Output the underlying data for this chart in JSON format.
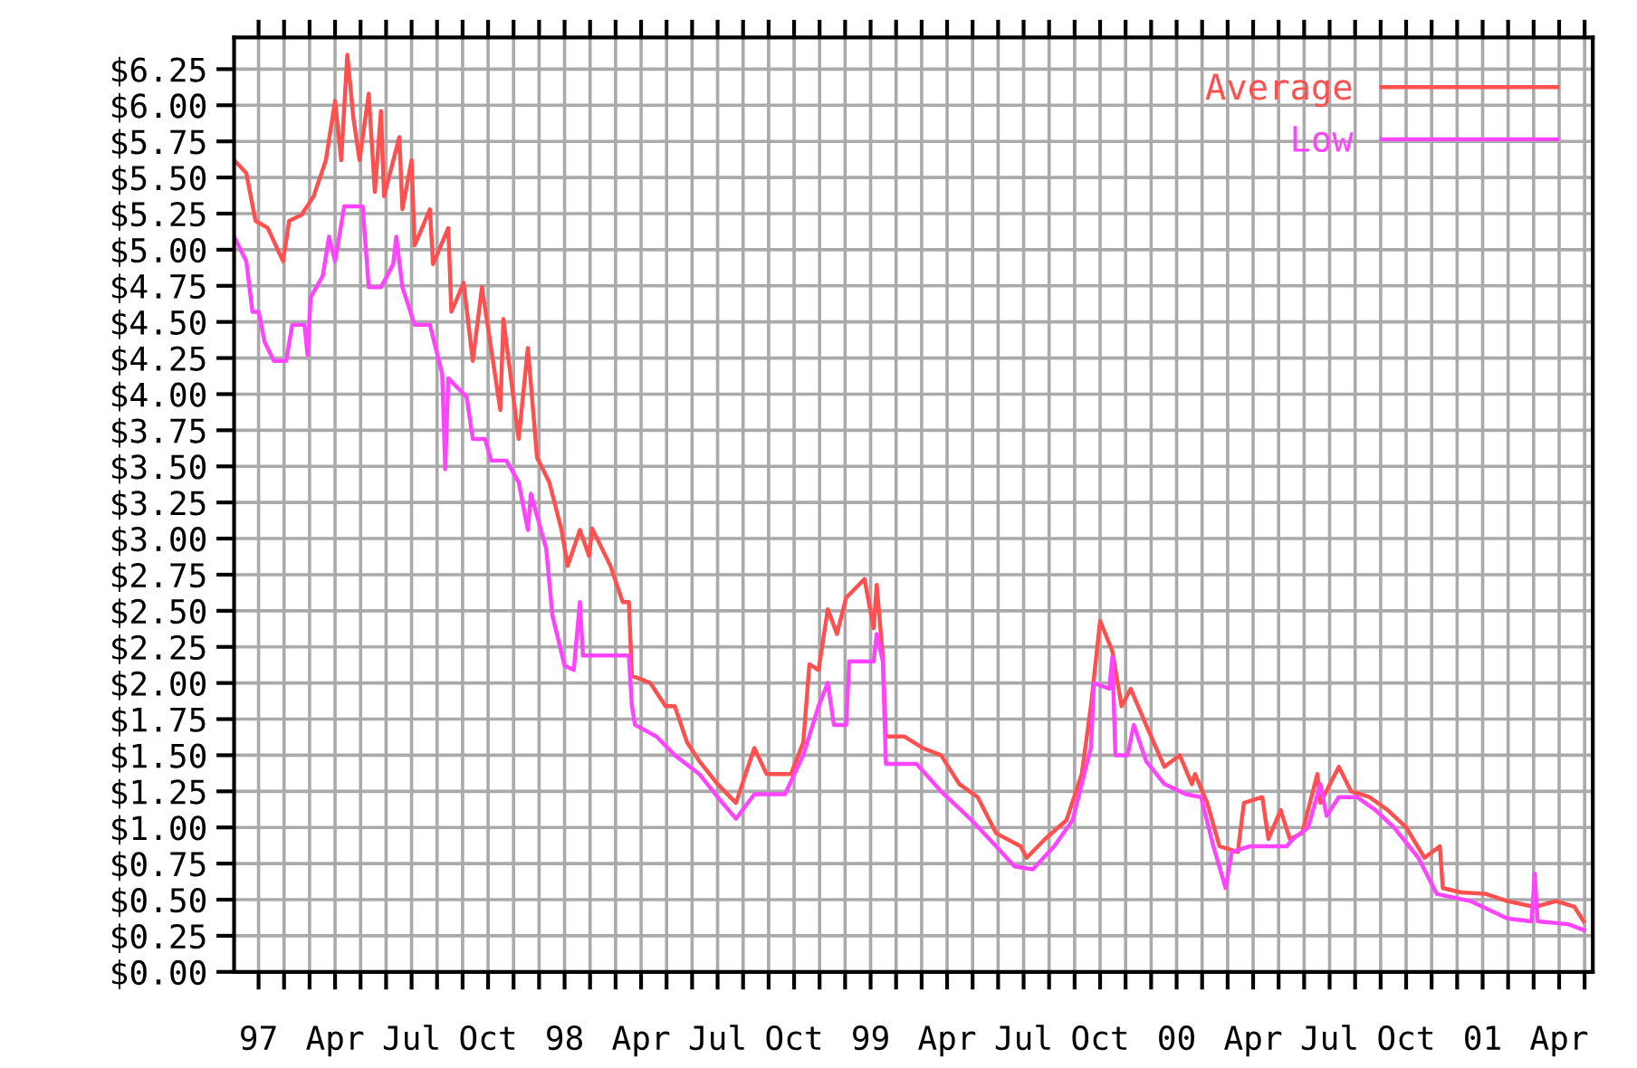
{
  "chart_data": {
    "type": "line",
    "x": [
      1996.92,
      1996.96,
      1996.99,
      1997.03,
      1997.08,
      1997.1,
      1997.14,
      1997.18,
      1997.22,
      1997.25,
      1997.27,
      1997.29,
      1997.31,
      1997.33,
      1997.36,
      1997.38,
      1997.4,
      1997.41,
      1997.46,
      1997.47,
      1997.5,
      1997.51,
      1997.56,
      1997.57,
      1997.62,
      1997.63,
      1997.67,
      1997.7,
      1997.73,
      1997.79,
      1997.8,
      1997.85,
      1997.88,
      1997.91,
      1997.95,
      1997.99,
      1998.01,
      1998.05,
      1998.08,
      1998.09,
      1998.15,
      1998.19,
      1998.21,
      1998.22,
      1998.28,
      1998.33,
      1998.36,
      1998.4,
      1998.44,
      1998.5,
      1998.56,
      1998.62,
      1998.66,
      1998.74,
      1998.78,
      1998.8,
      1998.83,
      1998.86,
      1998.89,
      1998.92,
      1998.98,
      1999.01,
      1999.02,
      1999.04,
      1999.05,
      1999.11,
      1999.17,
      1999.23,
      1999.29,
      1999.35,
      1999.41,
      1999.49,
      1999.51,
      1999.57,
      1999.64,
      1999.69,
      1999.72,
      1999.75,
      1999.79,
      1999.82,
      1999.85,
      1999.9,
      1999.96,
      2000.01,
      2000.05,
      2000.06,
      2000.1,
      2000.14,
      2000.2,
      2000.22,
      2000.28,
      2000.3,
      2000.34,
      2000.37,
      2000.41,
      2000.46,
      2000.47,
      2000.53,
      2000.57,
      2000.63,
      2000.69,
      2000.75,
      2000.81,
      2000.86,
      2000.87,
      2000.93,
      2001.01,
      2001.08,
      2001.17,
      2001.24,
      2001.3,
      2001.33
    ],
    "series": [
      {
        "name": "Average",
        "color": "#ff5050",
        "values": [
          5.62,
          5.53,
          5.2,
          5.15,
          4.92,
          5.2,
          5.24,
          5.37,
          5.62,
          6.03,
          5.62,
          6.35,
          5.91,
          5.62,
          6.08,
          5.4,
          5.96,
          5.37,
          5.78,
          5.28,
          5.62,
          5.03,
          5.28,
          4.9,
          5.15,
          4.57,
          4.77,
          4.23,
          4.74,
          3.89,
          4.52,
          3.69,
          4.32,
          3.56,
          3.39,
          3.06,
          2.81,
          3.06,
          2.88,
          3.07,
          2.81,
          2.56,
          2.56,
          2.05,
          2.0,
          1.84,
          1.84,
          1.59,
          1.46,
          1.3,
          1.17,
          1.55,
          1.37,
          1.37,
          1.59,
          2.13,
          2.09,
          2.51,
          2.34,
          2.59,
          2.72,
          2.38,
          2.68,
          2.18,
          1.63,
          1.63,
          1.55,
          1.5,
          1.3,
          1.21,
          0.96,
          0.87,
          0.79,
          0.92,
          1.05,
          1.37,
          1.84,
          2.43,
          2.22,
          1.84,
          1.96,
          1.71,
          1.42,
          1.5,
          1.3,
          1.37,
          1.17,
          0.87,
          0.83,
          1.17,
          1.21,
          0.92,
          1.12,
          0.92,
          0.96,
          1.37,
          1.17,
          1.42,
          1.25,
          1.21,
          1.12,
          1.0,
          0.79,
          0.87,
          0.58,
          0.55,
          0.54,
          0.49,
          0.45,
          0.49,
          0.45,
          0.35
        ]
      },
      {
        "name": "Low",
        "color": "#ff44ff",
        "x": [
          1996.92,
          1996.96,
          1996.98,
          1997.0,
          1997.02,
          1997.05,
          1997.09,
          1997.11,
          1997.15,
          1997.16,
          1997.17,
          1997.21,
          1997.23,
          1997.25,
          1997.28,
          1997.34,
          1997.36,
          1997.4,
          1997.44,
          1997.45,
          1997.47,
          1997.51,
          1997.56,
          1997.6,
          1997.61,
          1997.62,
          1997.68,
          1997.7,
          1997.74,
          1997.76,
          1997.81,
          1997.85,
          1997.88,
          1997.89,
          1997.94,
          1997.96,
          1998.0,
          1998.03,
          1998.05,
          1998.06,
          1998.12,
          1998.21,
          1998.22,
          1998.23,
          1998.3,
          1998.36,
          1998.44,
          1998.5,
          1998.56,
          1998.62,
          1998.72,
          1998.78,
          1998.83,
          1998.86,
          1998.88,
          1998.92,
          1998.93,
          1999.01,
          1999.02,
          1999.04,
          1999.05,
          1999.15,
          1999.23,
          1999.33,
          1999.41,
          1999.47,
          1999.53,
          1999.6,
          1999.66,
          1999.72,
          1999.73,
          1999.78,
          1999.79,
          1999.8,
          1999.84,
          1999.86,
          1999.9,
          1999.96,
          2000.03,
          2000.08,
          2000.12,
          2000.16,
          2000.18,
          2000.24,
          2000.3,
          2000.36,
          2000.38,
          2000.43,
          2000.47,
          2000.49,
          2000.53,
          2000.59,
          2000.65,
          2000.71,
          2000.79,
          2000.85,
          2000.96,
          2001.08,
          2001.16,
          2001.17,
          2001.18,
          2001.28,
          2001.33
        ],
        "values": [
          5.09,
          4.92,
          4.57,
          4.57,
          4.36,
          4.23,
          4.23,
          4.48,
          4.48,
          4.27,
          4.67,
          4.82,
          5.09,
          4.92,
          5.3,
          5.3,
          4.74,
          4.74,
          4.9,
          5.09,
          4.74,
          4.48,
          4.48,
          4.14,
          3.48,
          4.11,
          3.98,
          3.69,
          3.69,
          3.54,
          3.54,
          3.39,
          3.06,
          3.31,
          2.93,
          2.47,
          2.12,
          2.09,
          2.56,
          2.19,
          2.19,
          2.19,
          1.84,
          1.71,
          1.63,
          1.5,
          1.37,
          1.21,
          1.06,
          1.23,
          1.23,
          1.5,
          1.84,
          2.0,
          1.71,
          1.71,
          2.15,
          2.15,
          2.34,
          2.15,
          1.44,
          1.44,
          1.25,
          1.05,
          0.87,
          0.73,
          0.71,
          0.87,
          1.05,
          1.55,
          2.0,
          1.96,
          2.18,
          1.5,
          1.5,
          1.71,
          1.46,
          1.3,
          1.23,
          1.21,
          0.87,
          0.58,
          0.83,
          0.87,
          0.87,
          0.87,
          0.92,
          1.0,
          1.3,
          1.08,
          1.21,
          1.21,
          1.12,
          1.0,
          0.79,
          0.54,
          0.49,
          0.37,
          0.35,
          0.68,
          0.35,
          0.33,
          0.29
        ]
      }
    ],
    "xlim": [
      1996.92,
      2001.36
    ],
    "xticks": [
      {
        "value": 1997.0,
        "label": "97"
      },
      {
        "value": 1997.0833,
        "label": null
      },
      {
        "value": 1997.1667,
        "label": null
      },
      {
        "value": 1997.25,
        "label": "Apr"
      },
      {
        "value": 1997.3333,
        "label": null
      },
      {
        "value": 1997.4167,
        "label": null
      },
      {
        "value": 1997.5,
        "label": "Jul"
      },
      {
        "value": 1997.5833,
        "label": null
      },
      {
        "value": 1997.6667,
        "label": null
      },
      {
        "value": 1997.75,
        "label": "Oct"
      },
      {
        "value": 1997.8333,
        "label": null
      },
      {
        "value": 1997.9167,
        "label": null
      },
      {
        "value": 1998.0,
        "label": "98"
      },
      {
        "value": 1998.0833,
        "label": null
      },
      {
        "value": 1998.1667,
        "label": null
      },
      {
        "value": 1998.25,
        "label": "Apr"
      },
      {
        "value": 1998.3333,
        "label": null
      },
      {
        "value": 1998.4167,
        "label": null
      },
      {
        "value": 1998.5,
        "label": "Jul"
      },
      {
        "value": 1998.5833,
        "label": null
      },
      {
        "value": 1998.6667,
        "label": null
      },
      {
        "value": 1998.75,
        "label": "Oct"
      },
      {
        "value": 1998.8333,
        "label": null
      },
      {
        "value": 1998.9167,
        "label": null
      },
      {
        "value": 1999.0,
        "label": "99"
      },
      {
        "value": 1999.0833,
        "label": null
      },
      {
        "value": 1999.1667,
        "label": null
      },
      {
        "value": 1999.25,
        "label": "Apr"
      },
      {
        "value": 1999.3333,
        "label": null
      },
      {
        "value": 1999.4167,
        "label": null
      },
      {
        "value": 1999.5,
        "label": "Jul"
      },
      {
        "value": 1999.5833,
        "label": null
      },
      {
        "value": 1999.6667,
        "label": null
      },
      {
        "value": 1999.75,
        "label": "Oct"
      },
      {
        "value": 1999.8333,
        "label": null
      },
      {
        "value": 1999.9167,
        "label": null
      },
      {
        "value": 2000.0,
        "label": "00"
      },
      {
        "value": 2000.0833,
        "label": null
      },
      {
        "value": 2000.1667,
        "label": null
      },
      {
        "value": 2000.25,
        "label": "Apr"
      },
      {
        "value": 2000.3333,
        "label": null
      },
      {
        "value": 2000.4167,
        "label": null
      },
      {
        "value": 2000.5,
        "label": "Jul"
      },
      {
        "value": 2000.5833,
        "label": null
      },
      {
        "value": 2000.6667,
        "label": null
      },
      {
        "value": 2000.75,
        "label": "Oct"
      },
      {
        "value": 2000.8333,
        "label": null
      },
      {
        "value": 2000.9167,
        "label": null
      },
      {
        "value": 2001.0,
        "label": "01"
      },
      {
        "value": 2001.0833,
        "label": null
      },
      {
        "value": 2001.1667,
        "label": null
      },
      {
        "value": 2001.25,
        "label": "Apr"
      },
      {
        "value": 2001.3333,
        "label": null
      }
    ],
    "ylim": [
      0,
      6.47
    ],
    "yticks": [
      {
        "value": 0,
        "label": "$0.00"
      },
      {
        "value": 0.25,
        "label": "$0.25"
      },
      {
        "value": 0.5,
        "label": "$0.50"
      },
      {
        "value": 0.75,
        "label": "$0.75"
      },
      {
        "value": 1,
        "label": "$1.00"
      },
      {
        "value": 1.25,
        "label": "$1.25"
      },
      {
        "value": 1.5,
        "label": "$1.50"
      },
      {
        "value": 1.75,
        "label": "$1.75"
      },
      {
        "value": 2,
        "label": "$2.00"
      },
      {
        "value": 2.25,
        "label": "$2.25"
      },
      {
        "value": 2.5,
        "label": "$2.50"
      },
      {
        "value": 2.75,
        "label": "$2.75"
      },
      {
        "value": 3,
        "label": "$3.00"
      },
      {
        "value": 3.25,
        "label": "$3.25"
      },
      {
        "value": 3.5,
        "label": "$3.50"
      },
      {
        "value": 3.75,
        "label": "$3.75"
      },
      {
        "value": 4,
        "label": "$4.00"
      },
      {
        "value": 4.25,
        "label": "$4.25"
      },
      {
        "value": 4.5,
        "label": "$4.50"
      },
      {
        "value": 4.75,
        "label": "$4.75"
      },
      {
        "value": 5,
        "label": "$5.00"
      },
      {
        "value": 5.25,
        "label": "$5.25"
      },
      {
        "value": 5.5,
        "label": "$5.50"
      },
      {
        "value": 5.75,
        "label": "$5.75"
      },
      {
        "value": 6,
        "label": "$6.00"
      },
      {
        "value": 6.25,
        "label": "$6.25"
      }
    ],
    "grid": true,
    "legend": "top right",
    "marker": "none",
    "line_style": "solid"
  }
}
